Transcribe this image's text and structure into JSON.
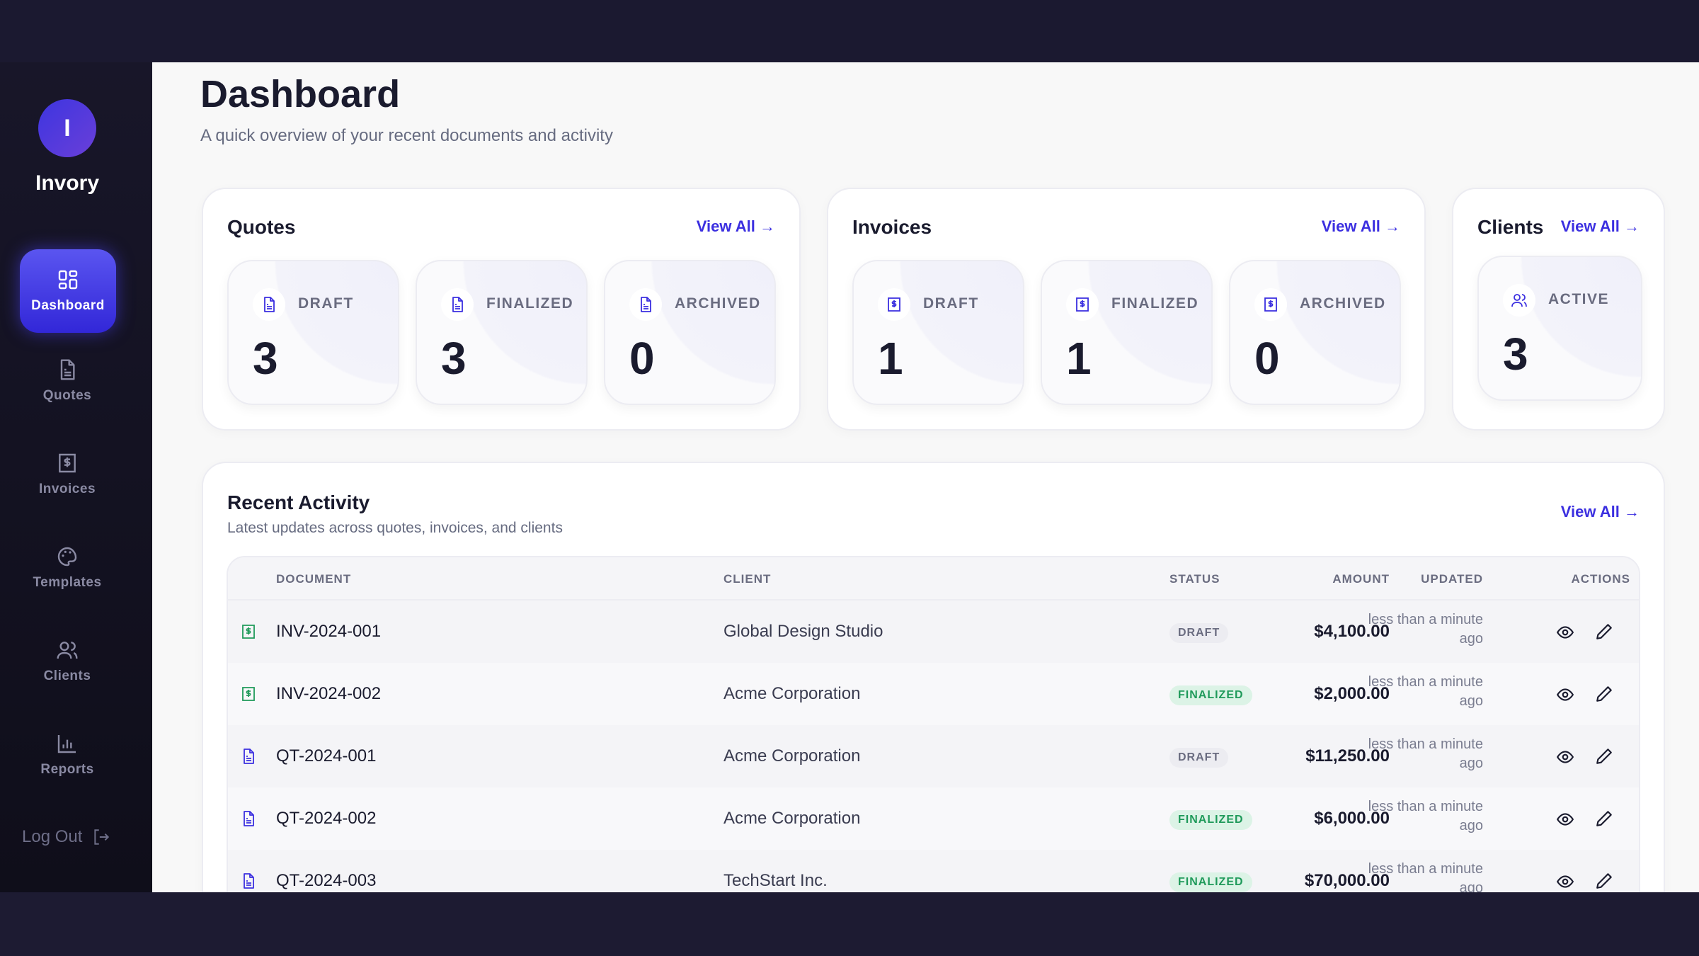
{
  "app": {
    "name": "Invory",
    "logo_letter": "I",
    "accent": "#3b2fe0"
  },
  "sidebar": {
    "items": [
      {
        "label": "Dashboard",
        "icon": "grid-icon",
        "active": true
      },
      {
        "label": "Quotes",
        "icon": "document-icon"
      },
      {
        "label": "Invoices",
        "icon": "receipt-dollar-icon"
      },
      {
        "label": "Templates",
        "icon": "palette-icon"
      },
      {
        "label": "Clients",
        "icon": "users-icon"
      },
      {
        "label": "Reports",
        "icon": "bar-chart-icon"
      }
    ],
    "logout": "Log Out"
  },
  "header": {
    "title": "Dashboard",
    "subtitle": "A quick overview of your recent documents and activity"
  },
  "quotes": {
    "title": "Quotes",
    "view_all": "View All →",
    "stats": [
      {
        "label": "DRAFT",
        "value": "3"
      },
      {
        "label": "FINALIZED",
        "value": "3"
      },
      {
        "label": "ARCHIVED",
        "value": "0"
      }
    ]
  },
  "invoices": {
    "title": "Invoices",
    "view_all": "View All →",
    "stats": [
      {
        "label": "DRAFT",
        "value": "1"
      },
      {
        "label": "FINALIZED",
        "value": "1"
      },
      {
        "label": "ARCHIVED",
        "value": "0"
      }
    ]
  },
  "clients": {
    "title": "Clients",
    "view_all": "View All →",
    "stats": [
      {
        "label": "ACTIVE",
        "value": "3"
      }
    ]
  },
  "activity": {
    "title": "Recent Activity",
    "subtitle": "Latest updates across quotes, invoices, and clients",
    "view_all": "View All →",
    "columns": [
      "DOCUMENT",
      "CLIENT",
      "STATUS",
      "AMOUNT",
      "UPDATED",
      "ACTIONS"
    ],
    "rows": [
      {
        "type": "invoice",
        "document": "INV-2024-001",
        "client": "Global Design Studio",
        "status": "DRAFT",
        "amount": "$4,100.00",
        "updated": "less than a minute ago"
      },
      {
        "type": "invoice",
        "document": "INV-2024-002",
        "client": "Acme Corporation",
        "status": "FINALIZED",
        "amount": "$2,000.00",
        "updated": "less than a minute ago"
      },
      {
        "type": "quote",
        "document": "QT-2024-001",
        "client": "Acme Corporation",
        "status": "DRAFT",
        "amount": "$11,250.00",
        "updated": "less than a minute ago"
      },
      {
        "type": "quote",
        "document": "QT-2024-002",
        "client": "Acme Corporation",
        "status": "FINALIZED",
        "amount": "$6,000.00",
        "updated": "less than a minute ago"
      },
      {
        "type": "quote",
        "document": "QT-2024-003",
        "client": "TechStart Inc.",
        "status": "FINALIZED",
        "amount": "$70,000.00",
        "updated": "less than a minute ago"
      }
    ]
  }
}
